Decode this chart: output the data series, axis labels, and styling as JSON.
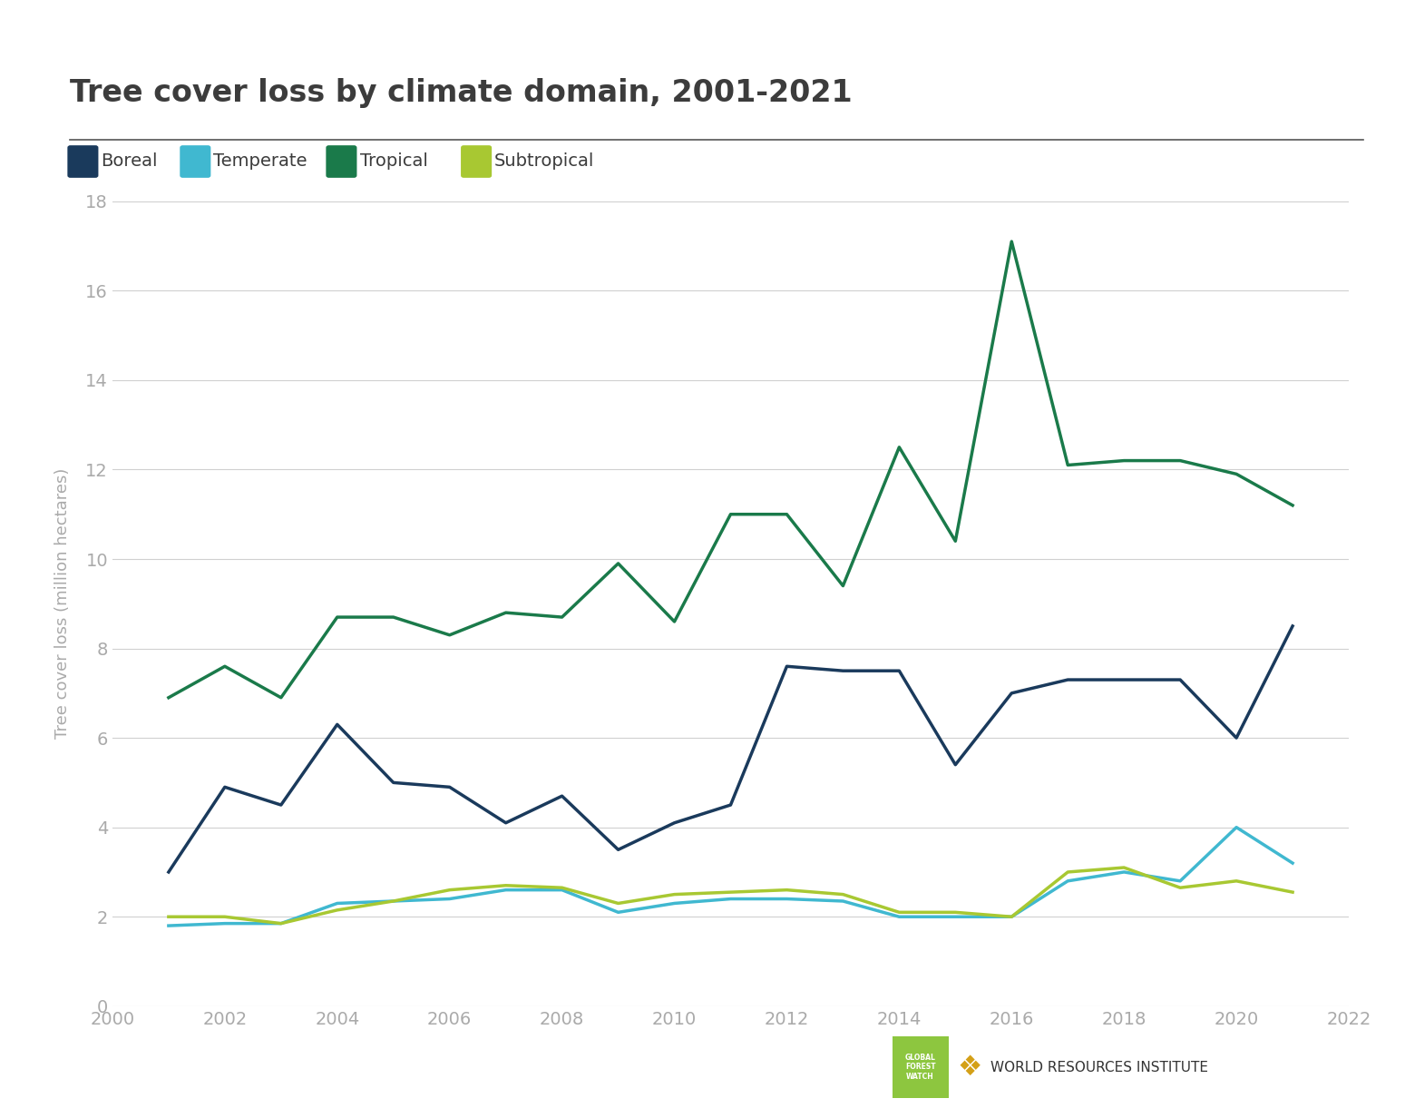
{
  "title": "Tree cover loss by climate domain, 2001-2021",
  "ylabel": "Tree cover loss (million hectares)",
  "years": [
    2001,
    2002,
    2003,
    2004,
    2005,
    2006,
    2007,
    2008,
    2009,
    2010,
    2011,
    2012,
    2013,
    2014,
    2015,
    2016,
    2017,
    2018,
    2019,
    2020,
    2021
  ],
  "boreal": [
    3.0,
    4.9,
    4.5,
    6.3,
    5.0,
    4.9,
    4.1,
    4.7,
    3.5,
    4.1,
    4.5,
    7.6,
    7.5,
    7.5,
    5.4,
    7.0,
    7.3,
    7.3,
    7.3,
    6.0,
    8.5
  ],
  "temperate": [
    1.8,
    1.85,
    1.85,
    2.3,
    2.35,
    2.4,
    2.6,
    2.6,
    2.1,
    2.3,
    2.4,
    2.4,
    2.35,
    2.0,
    2.0,
    2.0,
    2.8,
    3.0,
    2.8,
    4.0,
    3.2
  ],
  "tropical": [
    6.9,
    7.6,
    6.9,
    8.7,
    8.7,
    8.3,
    8.8,
    8.7,
    9.9,
    8.6,
    11.0,
    11.0,
    9.4,
    12.5,
    10.4,
    17.1,
    12.1,
    12.2,
    12.2,
    11.9,
    11.2
  ],
  "subtropical": [
    2.0,
    2.0,
    1.85,
    2.15,
    2.35,
    2.6,
    2.7,
    2.65,
    2.3,
    2.5,
    2.55,
    2.6,
    2.5,
    2.1,
    2.1,
    2.0,
    3.0,
    3.1,
    2.65,
    2.8,
    2.55
  ],
  "boreal_color": "#1a3a5c",
  "temperate_color": "#40b8d0",
  "tropical_color": "#1a7a4a",
  "subtropical_color": "#a8c832",
  "background_color": "#ffffff",
  "grid_color": "#d0d0d0",
  "title_color": "#3c3c3c",
  "axis_label_color": "#aaaaaa",
  "tick_label_color": "#aaaaaa",
  "separator_color": "#555555",
  "gfw_bg_color": "#8dc63f",
  "wri_emblem_color": "#d4a017",
  "line_width": 2.5,
  "ylim": [
    0,
    18
  ],
  "yticks": [
    0,
    2,
    4,
    6,
    8,
    10,
    12,
    14,
    16,
    18
  ],
  "xlim": [
    2000,
    2022
  ],
  "xticks": [
    2000,
    2002,
    2004,
    2006,
    2008,
    2010,
    2012,
    2014,
    2016,
    2018,
    2020,
    2022
  ],
  "legend_labels": [
    "Boreal",
    "Temperate",
    "Tropical",
    "Subtropical"
  ],
  "title_fontsize": 24,
  "label_fontsize": 13,
  "tick_fontsize": 14,
  "legend_fontsize": 14,
  "wri_fontsize": 11,
  "gfw_fontsize": 5.5
}
